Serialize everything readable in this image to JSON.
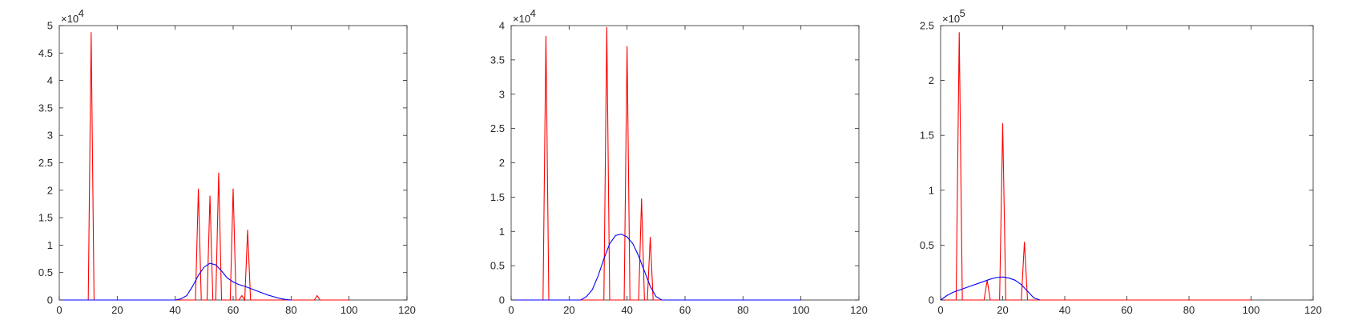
{
  "chart_data": [
    {
      "type": "line",
      "xlim": [
        0,
        120
      ],
      "ylim": [
        0,
        5
      ],
      "x_ticks": [
        "0",
        "20",
        "40",
        "60",
        "80",
        "100",
        "120"
      ],
      "y_ticks": [
        "0",
        "0.5",
        "1",
        "1.5",
        "2",
        "2.5",
        "3",
        "3.5",
        "4",
        "4.5",
        "5"
      ],
      "y_multiplier": {
        "base": "×10",
        "exponent": "4"
      },
      "grid": false,
      "series": [
        {
          "color": "#ff0000",
          "x": [
            0,
            10,
            11,
            12,
            47,
            48,
            49,
            51,
            52,
            53,
            54,
            55,
            56,
            59,
            60,
            61,
            62,
            63,
            64,
            65,
            66,
            88,
            89,
            90,
            100
          ],
          "y": [
            0,
            0,
            4.88,
            0,
            0,
            2.03,
            0,
            0,
            1.9,
            0,
            0,
            2.32,
            0,
            0,
            2.03,
            0,
            0,
            0.08,
            0,
            1.28,
            0,
            0,
            0.08,
            0,
            0
          ]
        },
        {
          "color": "#0000ff",
          "x": [
            0,
            40,
            42,
            44,
            46,
            48,
            50,
            52,
            54,
            56,
            58,
            60,
            62,
            64,
            66,
            68,
            70,
            72,
            74,
            76,
            78,
            80
          ],
          "y": [
            0,
            0,
            0.02,
            0.08,
            0.25,
            0.45,
            0.6,
            0.67,
            0.64,
            0.53,
            0.4,
            0.33,
            0.28,
            0.25,
            0.21,
            0.17,
            0.13,
            0.09,
            0.06,
            0.03,
            0.01,
            0
          ]
        }
      ]
    },
    {
      "type": "line",
      "xlim": [
        0,
        120
      ],
      "ylim": [
        0,
        4
      ],
      "x_ticks": [
        "0",
        "20",
        "40",
        "60",
        "80",
        "100",
        "120"
      ],
      "y_ticks": [
        "0",
        "0.5",
        "1",
        "1.5",
        "2",
        "2.5",
        "3",
        "3.5",
        "4"
      ],
      "y_multiplier": {
        "base": "×10",
        "exponent": "4"
      },
      "grid": false,
      "series": [
        {
          "color": "#ff0000",
          "x": [
            0,
            11,
            12,
            13,
            32,
            33,
            34,
            39,
            40,
            41,
            44,
            45,
            46,
            47,
            48,
            49,
            100
          ],
          "y": [
            0,
            0,
            3.85,
            0,
            0,
            3.98,
            0,
            0,
            3.7,
            0,
            0,
            1.48,
            0,
            0,
            0.92,
            0,
            0
          ]
        },
        {
          "color": "#0000ff",
          "x": [
            0,
            24,
            26,
            28,
            30,
            32,
            34,
            36,
            38,
            40,
            42,
            44,
            46,
            48,
            50,
            52,
            54,
            100
          ],
          "y": [
            0,
            0,
            0.05,
            0.15,
            0.35,
            0.6,
            0.82,
            0.94,
            0.96,
            0.92,
            0.82,
            0.64,
            0.42,
            0.2,
            0.05,
            0,
            0,
            0
          ]
        }
      ]
    },
    {
      "type": "line",
      "xlim": [
        0,
        120
      ],
      "ylim": [
        0,
        2.5
      ],
      "x_ticks": [
        "0",
        "20",
        "40",
        "60",
        "80",
        "100",
        "120"
      ],
      "y_ticks": [
        "0",
        "0.5",
        "1",
        "1.5",
        "2",
        "2.5"
      ],
      "y_multiplier": {
        "base": "×10",
        "exponent": "5"
      },
      "grid": false,
      "series": [
        {
          "color": "#ff0000",
          "x": [
            0,
            5,
            6,
            7,
            14,
            15,
            16,
            19,
            20,
            21,
            26,
            27,
            28,
            100
          ],
          "y": [
            0,
            0,
            2.44,
            0,
            0,
            0.18,
            0,
            0,
            1.61,
            0,
            0,
            0.53,
            0,
            0
          ]
        },
        {
          "color": "#0000ff",
          "x": [
            0,
            2,
            4,
            6,
            8,
            10,
            12,
            14,
            16,
            18,
            20,
            22,
            24,
            26,
            28,
            30,
            32
          ],
          "y": [
            0,
            0.04,
            0.07,
            0.09,
            0.11,
            0.13,
            0.15,
            0.17,
            0.19,
            0.205,
            0.21,
            0.2,
            0.18,
            0.14,
            0.08,
            0.02,
            0
          ]
        }
      ]
    }
  ]
}
